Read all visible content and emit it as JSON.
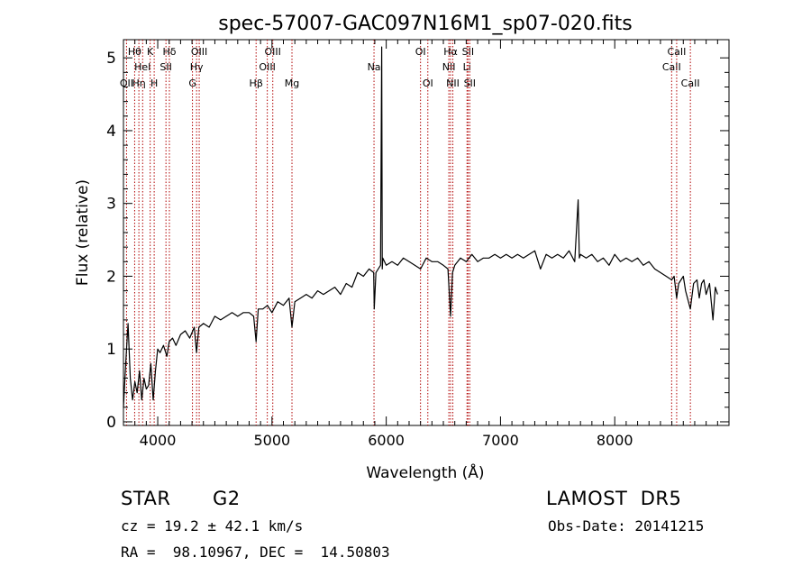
{
  "chart_data": {
    "type": "line",
    "title": "spec-57007-GAC097N16M1_sp07-020.fits",
    "xlabel": "Wavelength (Å)",
    "ylabel": "Flux (relative)",
    "xlim": [
      3700,
      9000
    ],
    "ylim": [
      -0.05,
      5.25
    ],
    "xticks": [
      4000,
      5000,
      6000,
      7000,
      8000
    ],
    "yticks": [
      0,
      1,
      2,
      3,
      4,
      5
    ],
    "grid": false,
    "series": [
      {
        "color": "#000000",
        "x": [
          3700,
          3720,
          3740,
          3760,
          3780,
          3800,
          3820,
          3840,
          3860,
          3880,
          3900,
          3920,
          3940,
          3960,
          3980,
          4000,
          4020,
          4050,
          4080,
          4100,
          4130,
          4160,
          4200,
          4240,
          4280,
          4320,
          4340,
          4360,
          4400,
          4450,
          4500,
          4550,
          4600,
          4650,
          4700,
          4750,
          4800,
          4840,
          4861,
          4880,
          4920,
          4960,
          5000,
          5050,
          5100,
          5150,
          5175,
          5200,
          5250,
          5300,
          5350,
          5400,
          5450,
          5500,
          5550,
          5600,
          5650,
          5700,
          5750,
          5800,
          5850,
          5890,
          5895,
          5910,
          5950,
          5960,
          5965,
          5970,
          6000,
          6050,
          6100,
          6150,
          6200,
          6250,
          6300,
          6350,
          6400,
          6450,
          6500,
          6540,
          6563,
          6580,
          6600,
          6650,
          6700,
          6750,
          6800,
          6850,
          6900,
          6950,
          7000,
          7050,
          7100,
          7150,
          7200,
          7250,
          7300,
          7350,
          7400,
          7450,
          7500,
          7550,
          7600,
          7650,
          7680,
          7690,
          7700,
          7750,
          7800,
          7850,
          7900,
          7950,
          8000,
          8050,
          8100,
          8150,
          8200,
          8250,
          8300,
          8350,
          8400,
          8450,
          8498,
          8520,
          8542,
          8560,
          8600,
          8620,
          8662,
          8690,
          8720,
          8740,
          8760,
          8780,
          8800,
          8830,
          8860,
          8880,
          8900
        ],
        "y": [
          0.2,
          0.8,
          1.35,
          0.6,
          0.3,
          0.55,
          0.4,
          0.7,
          0.3,
          0.6,
          0.45,
          0.5,
          0.8,
          0.3,
          0.7,
          1.0,
          0.95,
          1.05,
          0.9,
          1.1,
          1.15,
          1.05,
          1.2,
          1.25,
          1.15,
          1.3,
          0.95,
          1.3,
          1.35,
          1.3,
          1.45,
          1.4,
          1.45,
          1.5,
          1.45,
          1.5,
          1.5,
          1.45,
          1.1,
          1.55,
          1.55,
          1.6,
          1.5,
          1.65,
          1.6,
          1.7,
          1.3,
          1.65,
          1.7,
          1.75,
          1.7,
          1.8,
          1.75,
          1.8,
          1.85,
          1.75,
          1.9,
          1.85,
          2.05,
          2.0,
          2.1,
          2.05,
          1.55,
          2.05,
          2.15,
          5.15,
          2.1,
          2.25,
          2.15,
          2.2,
          2.15,
          2.25,
          2.2,
          2.15,
          2.1,
          2.25,
          2.2,
          2.2,
          2.15,
          2.1,
          1.45,
          2.05,
          2.15,
          2.25,
          2.2,
          2.3,
          2.2,
          2.25,
          2.25,
          2.3,
          2.25,
          2.3,
          2.25,
          2.3,
          2.25,
          2.3,
          2.35,
          2.1,
          2.3,
          2.25,
          2.3,
          2.25,
          2.35,
          2.2,
          3.05,
          2.25,
          2.3,
          2.25,
          2.3,
          2.2,
          2.25,
          2.15,
          2.3,
          2.2,
          2.25,
          2.2,
          2.25,
          2.15,
          2.2,
          2.1,
          2.05,
          2.0,
          1.95,
          2.0,
          1.7,
          1.9,
          2.0,
          1.8,
          1.55,
          1.9,
          1.95,
          1.7,
          1.9,
          1.95,
          1.75,
          1.9,
          1.4,
          1.85,
          1.75
        ]
      }
    ],
    "lines": [
      {
        "x": 3727,
        "label": "OII",
        "row": 2
      },
      {
        "x": 3798,
        "label": "Hθ",
        "row": 0
      },
      {
        "x": 3835,
        "label": "Hη",
        "row": 2
      },
      {
        "x": 3868,
        "label": "HeI",
        "row": 1
      },
      {
        "x": 3934,
        "label": "K",
        "row": 0
      },
      {
        "x": 3969,
        "label": "H",
        "row": 2
      },
      {
        "x": 4072,
        "label": "SII",
        "row": 1
      },
      {
        "x": 4102,
        "label": "Hδ",
        "row": 0
      },
      {
        "x": 4304,
        "label": "G",
        "row": 2
      },
      {
        "x": 4340,
        "label": "Hγ",
        "row": 1
      },
      {
        "x": 4363,
        "label": "OIII",
        "row": 0
      },
      {
        "x": 4861,
        "label": "Hβ",
        "row": 2
      },
      {
        "x": 4959,
        "label": "OIII",
        "row": 1
      },
      {
        "x": 5007,
        "label": "OIII",
        "row": 0
      },
      {
        "x": 5175,
        "label": "Mg",
        "row": 2
      },
      {
        "x": 5893,
        "label": "Na",
        "row": 1
      },
      {
        "x": 6300,
        "label": "OI",
        "row": 0
      },
      {
        "x": 6364,
        "label": "OI",
        "row": 2
      },
      {
        "x": 6548,
        "label": "NII",
        "row": 1
      },
      {
        "x": 6563,
        "label": "Hα",
        "row": 0
      },
      {
        "x": 6583,
        "label": "NII",
        "row": 2
      },
      {
        "x": 6707,
        "label": "Li",
        "row": 1
      },
      {
        "x": 6716,
        "label": "SII",
        "row": 0
      },
      {
        "x": 6731,
        "label": "SII",
        "row": 2
      },
      {
        "x": 8498,
        "label": "CaII",
        "row": 1
      },
      {
        "x": 8542,
        "label": "CaII",
        "row": 0
      },
      {
        "x": 8662,
        "label": "CaII",
        "row": 2
      }
    ]
  },
  "info": {
    "class": "STAR",
    "subclass": "G2",
    "survey": "LAMOST  DR5",
    "redshift": "cz = 19.2 ± 42.1 km/s",
    "obsdate": "Obs-Date: 20141215",
    "coords": "RA =  98.10967, DEC =  14.50803"
  }
}
